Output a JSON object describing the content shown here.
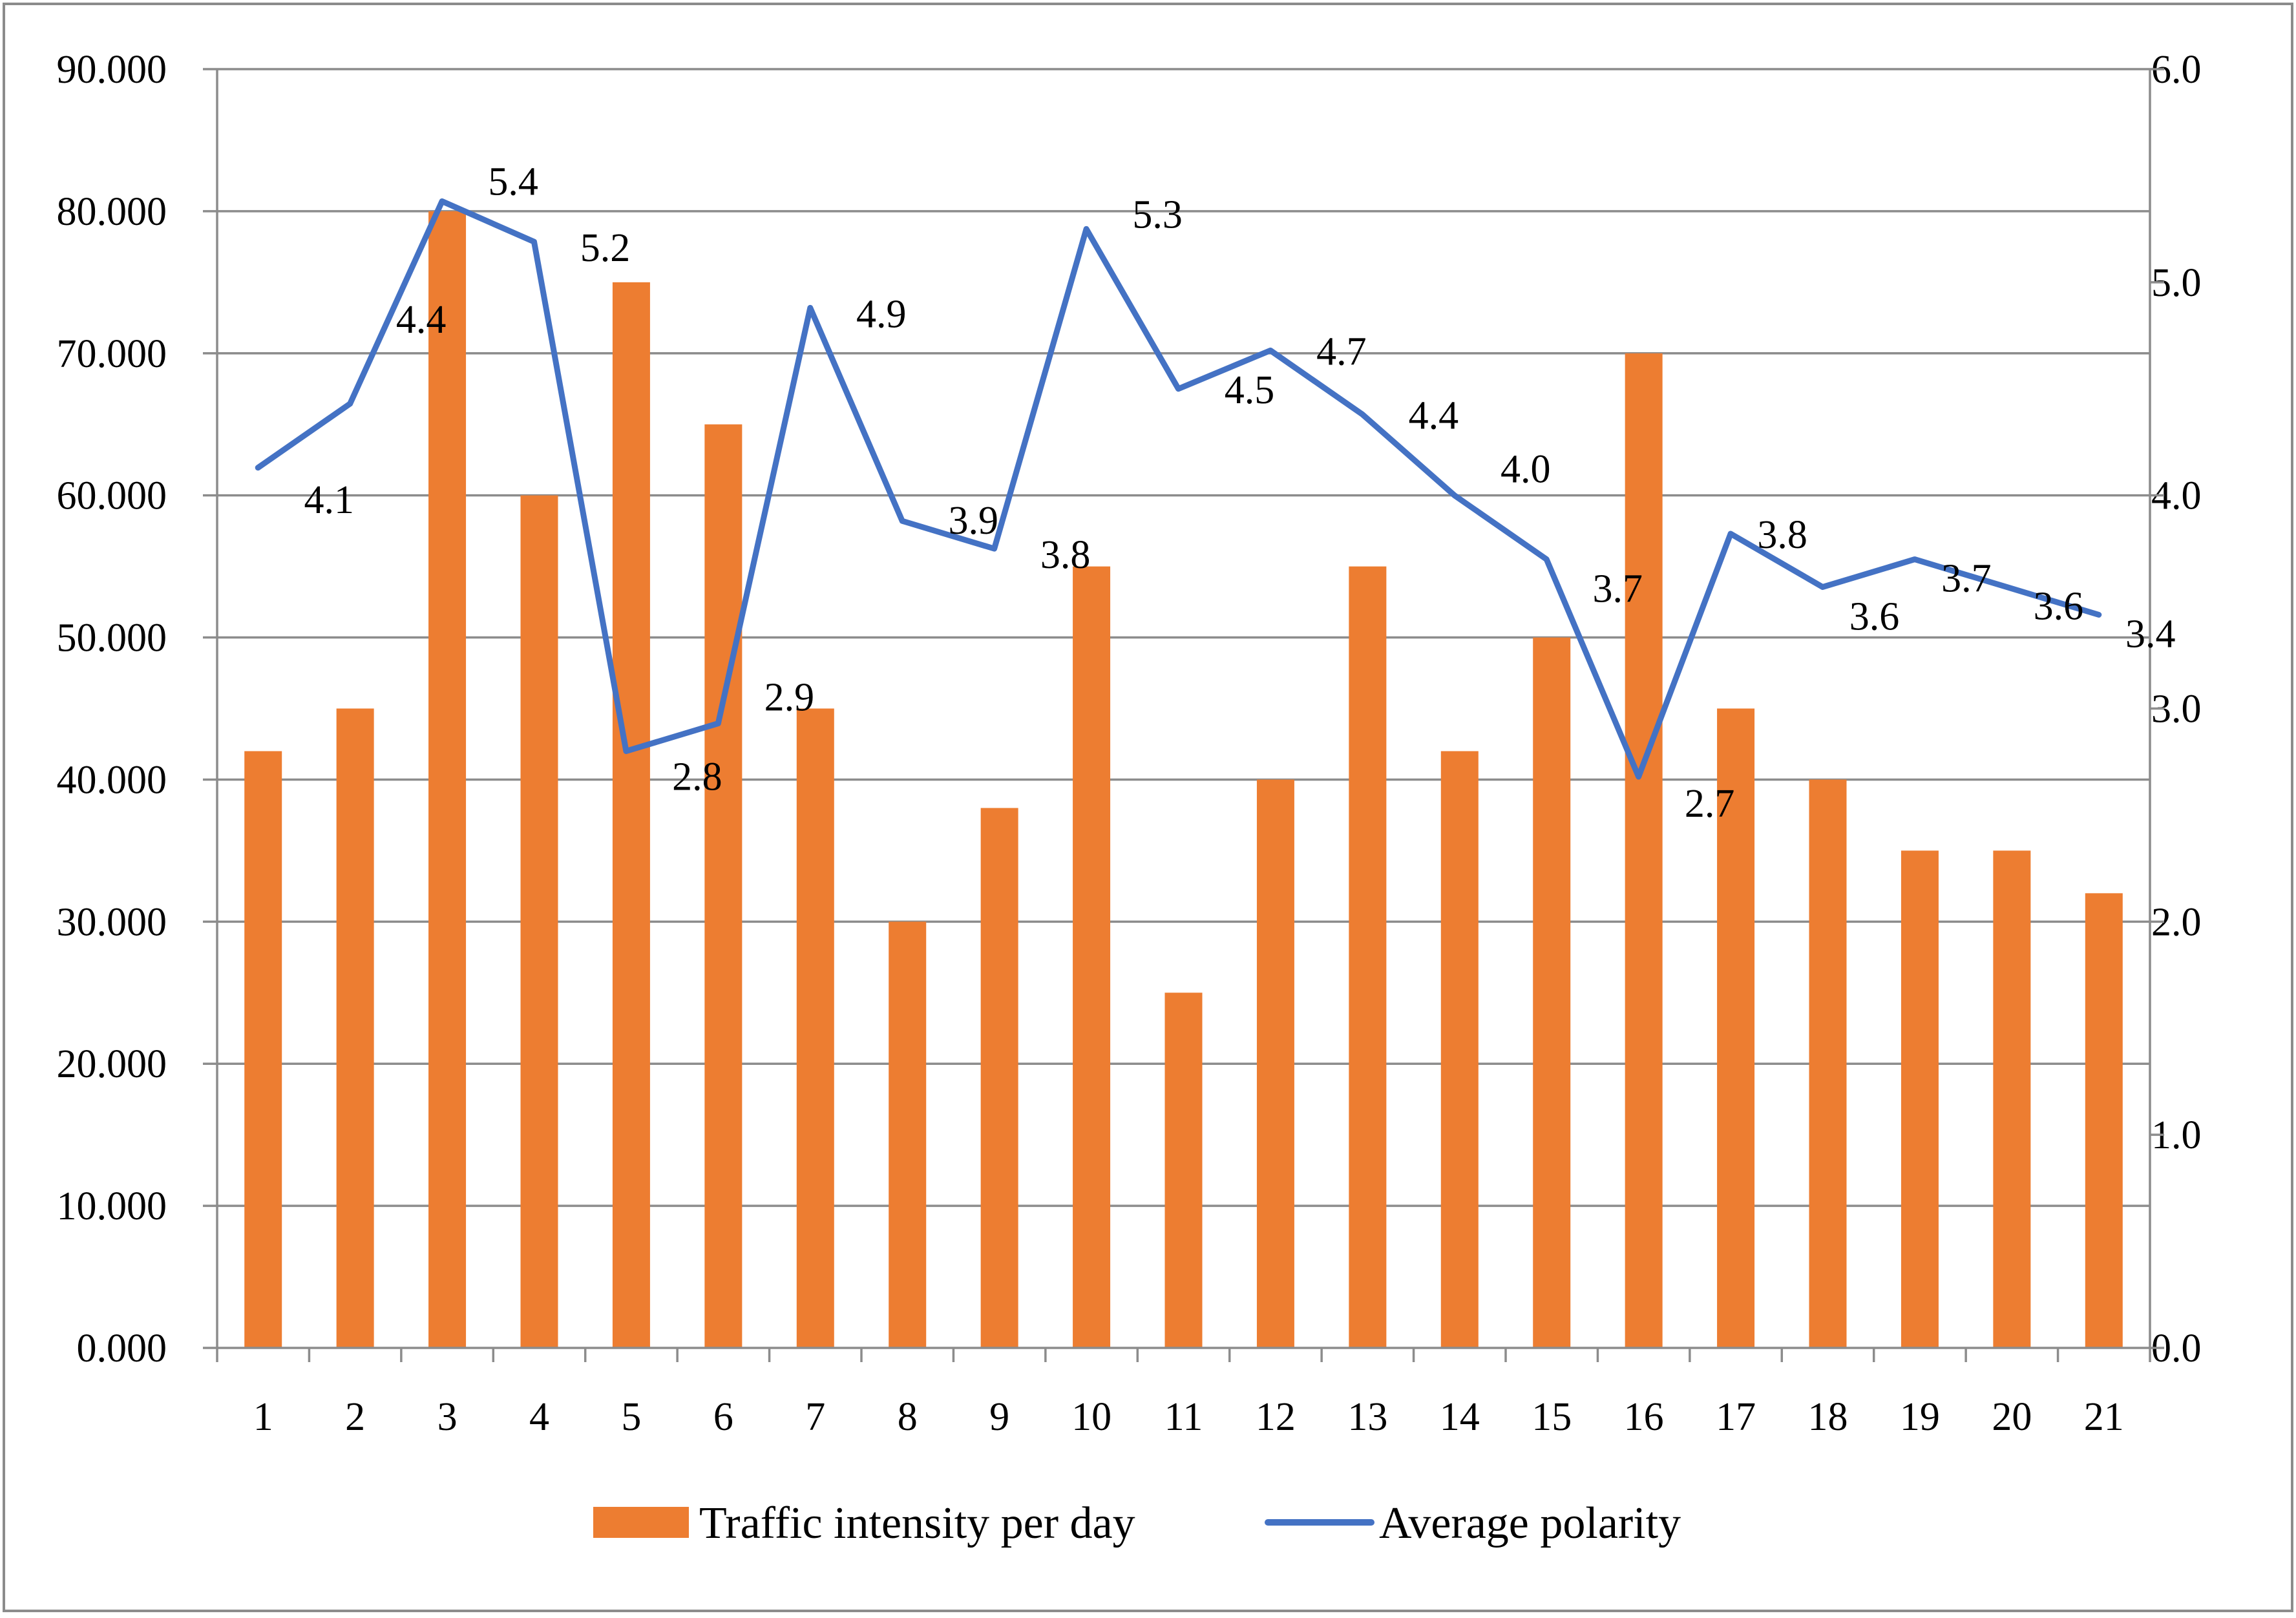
{
  "colors": {
    "bar": "#ED7D31",
    "line": "#4472C4",
    "grid": "#8C8C8C",
    "axis": "#8C8C8C",
    "frame": "#8C8C8C",
    "background": "#FFFFFF"
  },
  "chart_data": {
    "type": "bar",
    "title": "",
    "xlabel": "",
    "ylabel": "",
    "categories": [
      "1",
      "2",
      "3",
      "4",
      "5",
      "6",
      "7",
      "8",
      "9",
      "10",
      "11",
      "12",
      "13",
      "14",
      "15",
      "16",
      "17",
      "18",
      "19",
      "20",
      "21"
    ],
    "grid": true,
    "legend_position": "bottom-center",
    "y_left": {
      "range": [
        0,
        90
      ],
      "ticks": [
        0,
        10,
        20,
        30,
        40,
        50,
        60,
        70,
        80,
        90
      ],
      "tick_labels": [
        "0.000",
        "10.000",
        "20.000",
        "30.000",
        "40.000",
        "50.000",
        "60.000",
        "70.000",
        "80.000",
        "90.000"
      ]
    },
    "y_right": {
      "range": [
        0,
        6
      ],
      "ticks": [
        0,
        1,
        2,
        3,
        4,
        5,
        6
      ],
      "tick_labels": [
        "0.0",
        "1.0",
        "2.0",
        "3.0",
        "4.0",
        "5.0",
        "6.0"
      ]
    },
    "series": [
      {
        "name": "Traffic intensity per day",
        "type": "bar",
        "axis": "left",
        "values": [
          42,
          45,
          80,
          60,
          75,
          65,
          45,
          30,
          38,
          55,
          25,
          40,
          55,
          42,
          50,
          70,
          45,
          40,
          35,
          35,
          32
        ]
      },
      {
        "name": "Average polarity",
        "type": "line",
        "axis": "right",
        "values": [
          4.13,
          4.43,
          5.38,
          5.19,
          2.8,
          2.93,
          4.88,
          3.88,
          3.75,
          5.25,
          4.5,
          4.68,
          4.38,
          4.0,
          3.7,
          2.68,
          3.82,
          3.57,
          3.7,
          3.57,
          3.44
        ],
        "data_labels": [
          "4.1",
          "4.4",
          "5.4",
          "5.2",
          "2.8",
          "2.9",
          "4.9",
          "3.9",
          "3.8",
          "5.3",
          "4.5",
          "4.7",
          "4.4",
          "4.0",
          "3.7",
          "2.7",
          "3.8",
          "3.6",
          "3.7",
          "3.6",
          "3.4"
        ]
      }
    ]
  }
}
